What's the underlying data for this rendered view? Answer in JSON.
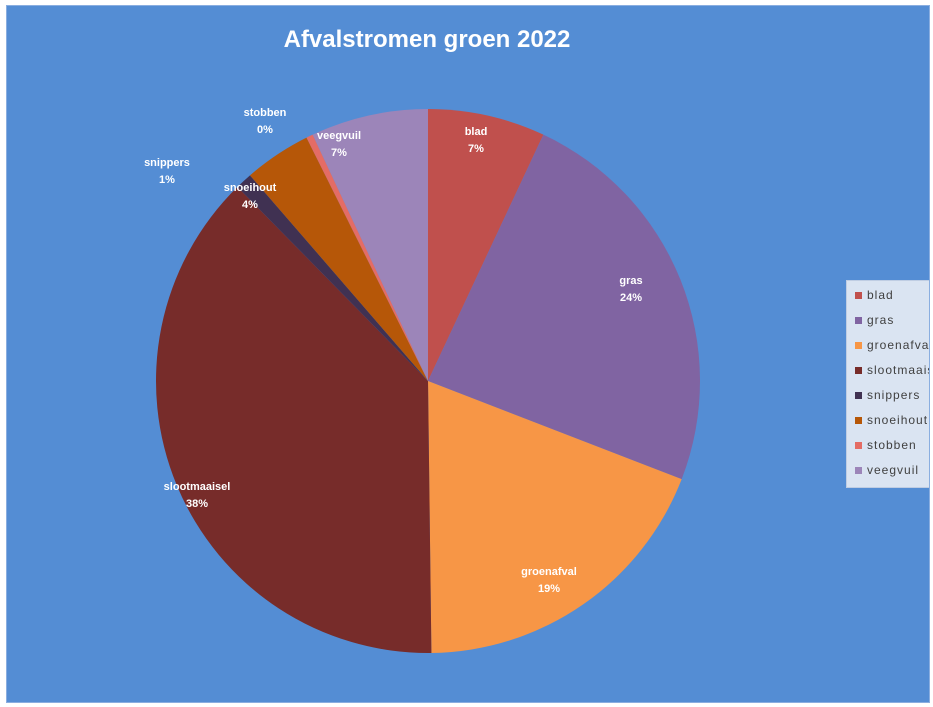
{
  "chart_data": {
    "type": "pie",
    "title": "Afvalstromen groen 2022",
    "legend_position": "right",
    "slices": [
      {
        "label": "blad",
        "value": 7,
        "display": "7%",
        "color": "#c0504d"
      },
      {
        "label": "gras",
        "value": 24,
        "display": "24%",
        "color": "#8064a2"
      },
      {
        "label": "groenafval",
        "value": 19,
        "display": "19%",
        "color": "#f79646"
      },
      {
        "label": "slootmaaisel",
        "value": 38,
        "display": "38%",
        "color": "#772c2a"
      },
      {
        "label": "snippers",
        "value": 1,
        "display": "1%",
        "color": "#403152"
      },
      {
        "label": "snoeihout",
        "value": 4,
        "display": "4%",
        "color": "#b65708"
      },
      {
        "label": "stobben",
        "value": 0.4,
        "display": "0%",
        "color": "#e46c65"
      },
      {
        "label": "veegvuil",
        "value": 7,
        "display": "7%",
        "color": "#9c85b9"
      }
    ]
  }
}
